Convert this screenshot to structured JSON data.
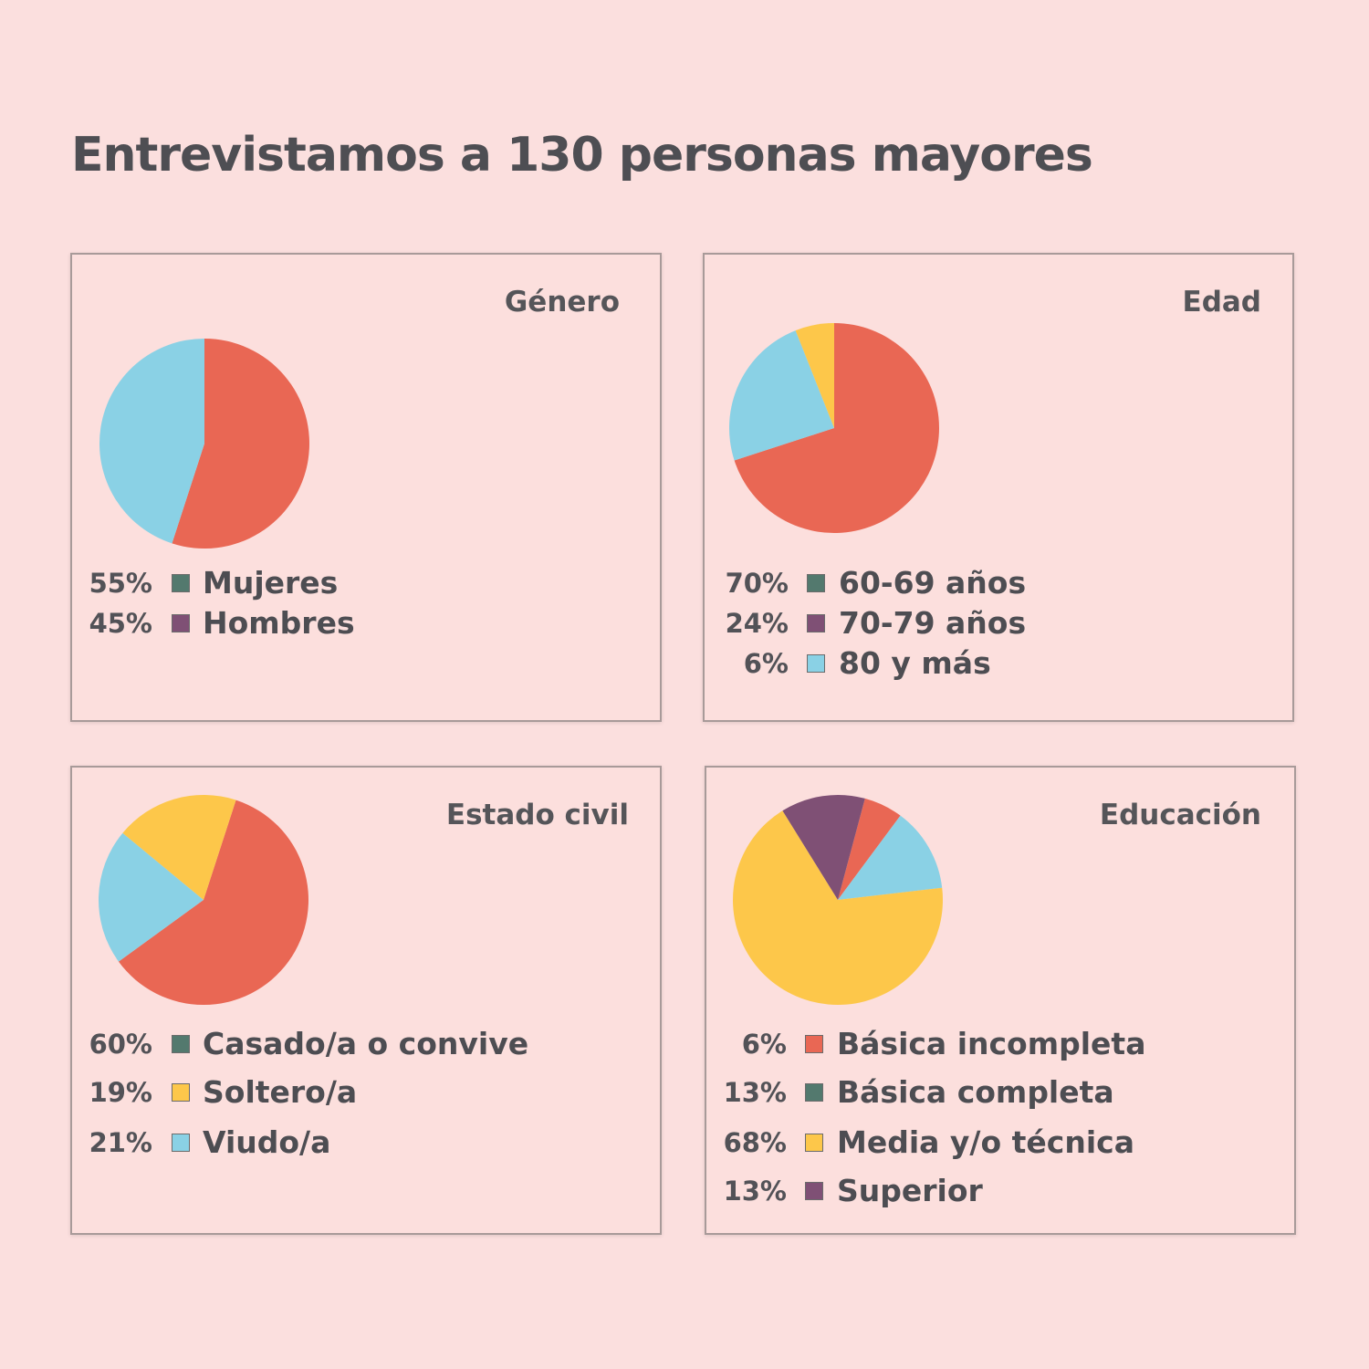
{
  "title": "Entrevistamos a 130 personas mayores",
  "colors": {
    "red": "#e96754",
    "blue": "#8ad1e5",
    "yellow": "#fdc74a",
    "purple": "#7f5075",
    "teal": "#53796e"
  },
  "chart_data": [
    {
      "type": "pie",
      "title": "Género",
      "legend": [
        {
          "pct": "55%",
          "label": "Mujeres",
          "color": "#53796e"
        },
        {
          "pct": "45%",
          "label": "Hombres",
          "color": "#7f5075"
        }
      ],
      "slices": [
        {
          "value": 55,
          "color": "#e96754"
        },
        {
          "value": 45,
          "color": "#8ad1e5"
        }
      ]
    },
    {
      "type": "pie",
      "title": "Edad",
      "legend": [
        {
          "pct": "70%",
          "label": "60-69 años",
          "color": "#53796e"
        },
        {
          "pct": "24%",
          "label": "70-79 años",
          "color": "#7f5075"
        },
        {
          "pct": "6%",
          "label": "80 y más",
          "color": "#8ad1e5"
        }
      ],
      "slices": [
        {
          "value": 70,
          "color": "#e96754"
        },
        {
          "value": 24,
          "color": "#8ad1e5"
        },
        {
          "value": 6,
          "color": "#fdc74a"
        }
      ]
    },
    {
      "type": "pie",
      "title": "Estado civil",
      "legend": [
        {
          "pct": "60%",
          "label": "Casado/a o convive",
          "color": "#53796e"
        },
        {
          "pct": "19%",
          "label": "Soltero/a",
          "color": "#fdc74a"
        },
        {
          "pct": "21%",
          "label": "Viudo/a",
          "color": "#8ad1e5"
        }
      ],
      "slices": [
        {
          "value": 60,
          "color": "#e96754"
        },
        {
          "value": 21,
          "color": "#8ad1e5"
        },
        {
          "value": 19,
          "color": "#fdc74a"
        }
      ]
    },
    {
      "type": "pie",
      "title": "Educación",
      "legend": [
        {
          "pct": "6%",
          "label": "Básica incompleta",
          "color": "#e96754"
        },
        {
          "pct": "13%",
          "label": "Básica completa",
          "color": "#53796e"
        },
        {
          "pct": "68%",
          "label": "Media y/o técnica",
          "color": "#fdc74a"
        },
        {
          "pct": "13%",
          "label": "Superior",
          "color": "#7f5075"
        }
      ],
      "slices": [
        {
          "value": 6,
          "color": "#e96754"
        },
        {
          "value": 13,
          "color": "#8ad1e5"
        },
        {
          "value": 68,
          "color": "#fdc74a"
        },
        {
          "value": 13,
          "color": "#7f5075"
        }
      ]
    }
  ]
}
